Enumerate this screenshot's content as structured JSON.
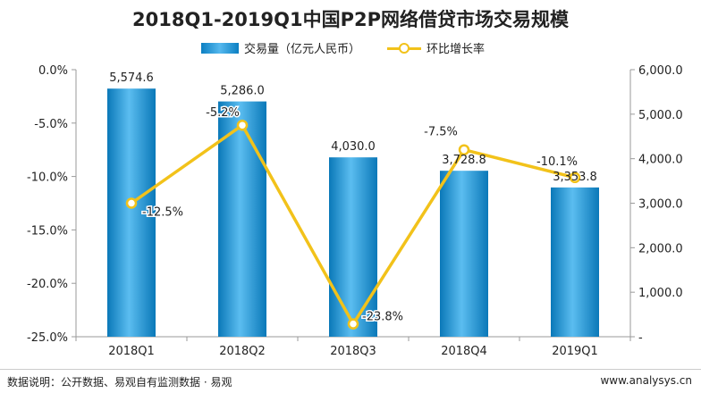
{
  "chart_data": {
    "type": "bar",
    "title": "2018Q1-2019Q1中国P2P网络借贷市场交易规模",
    "categories": [
      "2018Q1",
      "2018Q2",
      "2018Q3",
      "2018Q4",
      "2019Q1"
    ],
    "series": [
      {
        "name": "交易量（亿元人民币）",
        "type": "bar",
        "axis": "right",
        "values": [
          5574.6,
          5286.0,
          4030.0,
          3728.8,
          3353.8
        ],
        "labels": [
          "5,574.6",
          "5,286.0",
          "4,030.0",
          "3,728.8",
          "3,353.8"
        ],
        "color": "#1a8fd0"
      },
      {
        "name": "环比增长率",
        "type": "line",
        "axis": "left",
        "values": [
          -12.5,
          -5.2,
          -23.8,
          -7.5,
          -10.1
        ],
        "labels": [
          "-12.5%",
          "-5.2%",
          "-23.8%",
          "-7.5%",
          "-10.1%"
        ],
        "color": "#f2c21a"
      }
    ],
    "left_axis": {
      "range": [
        -25,
        0
      ],
      "ticks": [
        "0.0%",
        "-5.0%",
        "-10.0%",
        "-15.0%",
        "-20.0%",
        "-25.0%"
      ]
    },
    "right_axis": {
      "range": [
        0,
        6000
      ],
      "ticks": [
        "6,000.0",
        "5,000.0",
        "4,000.0",
        "3,000.0",
        "2,000.0",
        "1,000.0",
        "-"
      ]
    },
    "grid": false,
    "legend_position": "top"
  },
  "footer": {
    "source": "数据说明：公开数据、易观自有监测数据 · 易观",
    "url": "www.analysys.cn"
  }
}
